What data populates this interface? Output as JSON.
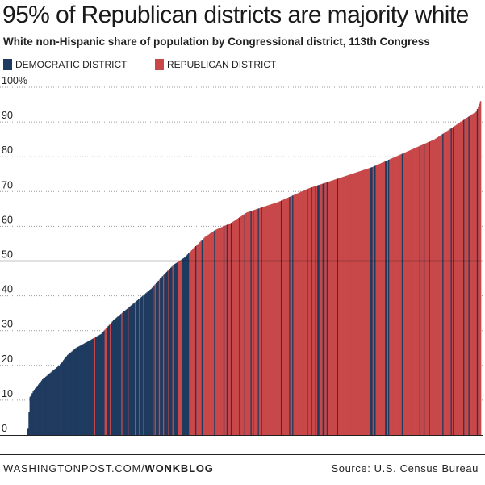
{
  "header": {
    "title": "95% of Republican districts are majority white",
    "subtitle": "White non-Hispanic share of population by Congressional district, 113th Congress"
  },
  "legend": [
    {
      "label": "DEMOCRATIC DISTRICT",
      "color": "#1f3a5f"
    },
    {
      "label": "REPUBLICAN DISTRICT",
      "color": "#c8484a"
    }
  ],
  "footer": {
    "site": "WASHINGTONPOST.COM/",
    "site_bold": "WONKBLOG",
    "source": "Source: U.S. Census Bureau"
  },
  "chart_data": {
    "type": "bar",
    "title": "95% of Republican districts are majority white",
    "subtitle": "White non-Hispanic share of population by Congressional district, 113th Congress",
    "xlabel": "",
    "ylabel": "",
    "ylim": [
      0,
      100
    ],
    "yticks": [
      0,
      10,
      20,
      30,
      40,
      50,
      60,
      70,
      80,
      90,
      100
    ],
    "ytick_labels": [
      "0",
      "10",
      "20",
      "30",
      "40",
      "50",
      "60",
      "70",
      "80",
      "90",
      "100%"
    ],
    "reference_line": 50,
    "grid": "horizontal dotted",
    "legend_position": "top-left",
    "sorted": "ascending",
    "series": [
      {
        "name": "DEMOCRATIC DISTRICT",
        "color": "#1f3a5f"
      },
      {
        "name": "REPUBLICAN DISTRICT",
        "color": "#c8484a"
      }
    ],
    "district_count": 435,
    "curve": [
      [
        0,
        2
      ],
      [
        2,
        11
      ],
      [
        6,
        13
      ],
      [
        14,
        16
      ],
      [
        22,
        18
      ],
      [
        30,
        20
      ],
      [
        38,
        23
      ],
      [
        46,
        25
      ],
      [
        58,
        27
      ],
      [
        70,
        29
      ],
      [
        82,
        33
      ],
      [
        94,
        36
      ],
      [
        106,
        39
      ],
      [
        118,
        42
      ],
      [
        130,
        46
      ],
      [
        140,
        49
      ],
      [
        150,
        51
      ],
      [
        160,
        54
      ],
      [
        170,
        57
      ],
      [
        180,
        59
      ],
      [
        195,
        61
      ],
      [
        210,
        64
      ],
      [
        225,
        65.5
      ],
      [
        240,
        67
      ],
      [
        255,
        69
      ],
      [
        270,
        71
      ],
      [
        285,
        72.5
      ],
      [
        300,
        74
      ],
      [
        315,
        75.5
      ],
      [
        330,
        77
      ],
      [
        345,
        79
      ],
      [
        360,
        81
      ],
      [
        375,
        83
      ],
      [
        390,
        85
      ],
      [
        405,
        88
      ],
      [
        420,
        91
      ],
      [
        430,
        93
      ],
      [
        434,
        96
      ]
    ],
    "party_mix": [
      [
        0,
        1
      ],
      [
        60,
        0.97
      ],
      [
        100,
        0.88
      ],
      [
        130,
        0.75
      ],
      [
        150,
        0.45
      ],
      [
        180,
        0.22
      ],
      [
        240,
        0.14
      ],
      [
        320,
        0.11
      ],
      [
        434,
        0.1
      ]
    ]
  }
}
